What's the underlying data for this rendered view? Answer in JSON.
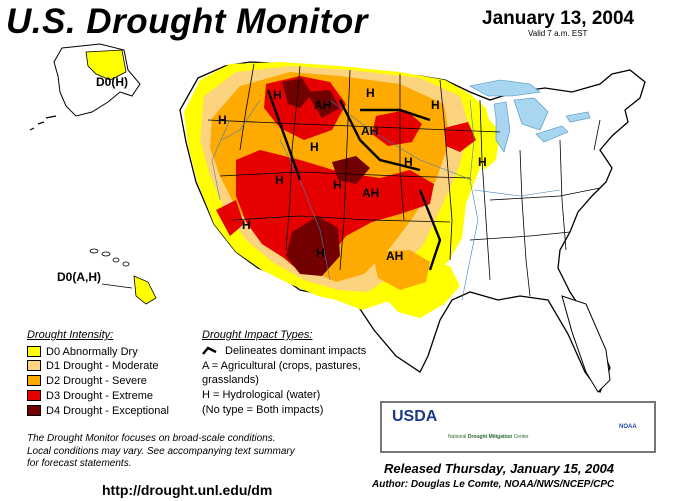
{
  "header": {
    "title": "U.S. Drought Monitor",
    "date": "January 13, 2004",
    "valid": "Valid 7 a.m. EST"
  },
  "map_labels": {
    "alaska": "D0(H)",
    "hawaii": "D0(A,H)",
    "impact_codes": [
      "H",
      "AH",
      "H",
      "H",
      "H",
      "AH",
      "H",
      "H",
      "H",
      "H",
      "H",
      "AH",
      "H",
      "H",
      "AH"
    ]
  },
  "legend": {
    "title": "Drought Intensity:",
    "items": [
      {
        "label": "D0 Abnormally Dry",
        "color": "#ffff00"
      },
      {
        "label": "D1 Drought - Moderate",
        "color": "#fcd37f"
      },
      {
        "label": "D2 Drought - Severe",
        "color": "#ffaa00"
      },
      {
        "label": "D3 Drought - Extreme",
        "color": "#e60000"
      },
      {
        "label": "D4 Drought - Exceptional",
        "color": "#730000"
      }
    ]
  },
  "impacts": {
    "title": "Drought Impact Types:",
    "boundary": "Delineates dominant impacts",
    "agricultural_1": "A = Agricultural (crops, pastures,",
    "agricultural_2": "grasslands)",
    "hydrological": "H = Hydrological (water)",
    "both": "(No type = Both impacts)"
  },
  "note": {
    "line1": "The Drought Monitor focuses on broad-scale conditions.",
    "line2": "Local conditions may vary.  See accompanying text summary",
    "line3": "for forecast statements."
  },
  "footer": {
    "url": "http://drought.unl.edu/dm",
    "released": "Released Thursday, January 15, 2004",
    "author": "Author:  Douglas Le Comte, NOAA/NWS/NCEP/CPC"
  },
  "logos": {
    "usda": "USDA",
    "ndmc_1": "National",
    "ndmc_2": "Drought Mitigation",
    "ndmc_3": "Center",
    "noaa": "NOAA"
  }
}
